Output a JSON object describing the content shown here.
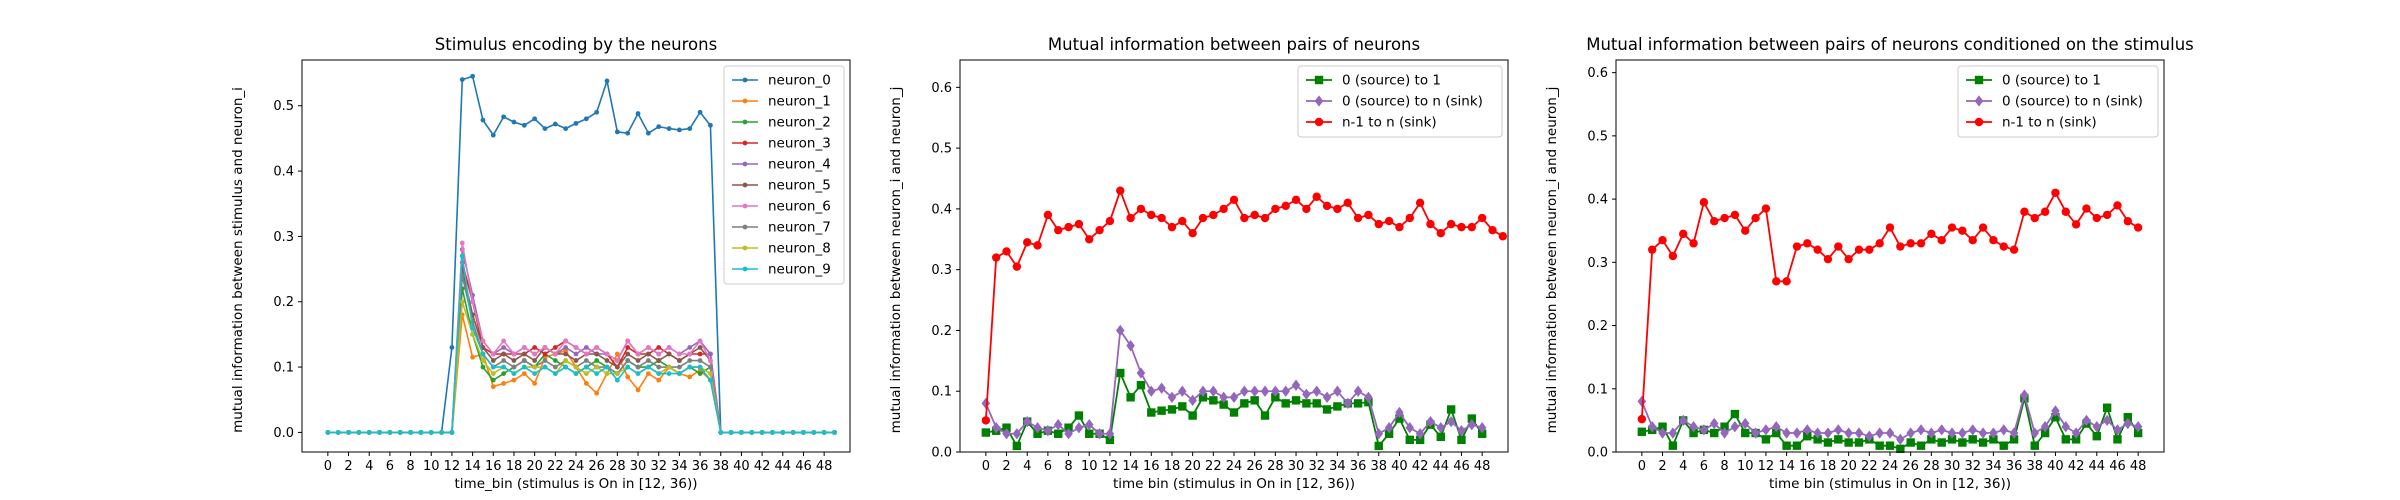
{
  "chart_data": [
    {
      "type": "line",
      "title": "Stimulus encoding by the neurons",
      "xlabel": "time_bin (stimulus is On in [12, 36))",
      "ylabel": "mutual information between stimulus and neuron_i",
      "xlim": [
        -2.5,
        50.5
      ],
      "ylim": [
        -0.03,
        0.57
      ],
      "xticks": [
        0,
        2,
        4,
        6,
        8,
        10,
        12,
        14,
        16,
        18,
        20,
        22,
        24,
        26,
        28,
        30,
        32,
        34,
        36,
        38,
        40,
        42,
        44,
        46,
        48
      ],
      "yticks": [
        0.0,
        0.1,
        0.2,
        0.3,
        0.4,
        0.5
      ],
      "ytick_labels": [
        "0.0",
        "0.1",
        "0.2",
        "0.3",
        "0.4",
        "0.5"
      ],
      "legend": "top-right",
      "grid": false,
      "series": [
        {
          "name": "neuron_0",
          "color": "#1f77b4",
          "marker": "circle",
          "values": [
            0,
            0,
            0,
            0,
            0,
            0,
            0,
            0,
            0,
            0,
            0,
            0,
            0.13,
            0.54,
            0.545,
            0.478,
            0.455,
            0.483,
            0.475,
            0.47,
            0.48,
            0.465,
            0.472,
            0.465,
            0.473,
            0.48,
            0.49,
            0.538,
            0.46,
            0.458,
            0.488,
            0.458,
            0.468,
            0.465,
            0.463,
            0.465,
            0.49,
            0.47,
            0,
            0,
            0,
            0,
            0,
            0,
            0,
            0,
            0,
            0,
            0,
            0
          ]
        },
        {
          "name": "neuron_1",
          "color": "#ff7f0e",
          "marker": "circle",
          "values": [
            0,
            0,
            0,
            0,
            0,
            0,
            0,
            0,
            0,
            0,
            0,
            0,
            0,
            0.18,
            0.115,
            0.12,
            0.07,
            0.075,
            0.08,
            0.09,
            0.075,
            0.115,
            0.12,
            0.125,
            0.1,
            0.075,
            0.06,
            0.09,
            0.12,
            0.085,
            0.065,
            0.09,
            0.08,
            0.1,
            0.09,
            0.085,
            0.095,
            0.08,
            0,
            0,
            0,
            0,
            0,
            0,
            0,
            0,
            0,
            0,
            0,
            0
          ]
        },
        {
          "name": "neuron_2",
          "color": "#2ca02c",
          "marker": "circle",
          "values": [
            0,
            0,
            0,
            0,
            0,
            0,
            0,
            0,
            0,
            0,
            0,
            0,
            0,
            0.22,
            0.15,
            0.1,
            0.08,
            0.09,
            0.1,
            0.11,
            0.1,
            0.12,
            0.11,
            0.1,
            0.09,
            0.1,
            0.11,
            0.1,
            0.09,
            0.11,
            0.1,
            0.1,
            0.11,
            0.1,
            0.09,
            0.1,
            0.09,
            0.1,
            0,
            0,
            0,
            0,
            0,
            0,
            0,
            0,
            0,
            0,
            0,
            0
          ]
        },
        {
          "name": "neuron_3",
          "color": "#d62728",
          "marker": "circle",
          "values": [
            0,
            0,
            0,
            0,
            0,
            0,
            0,
            0,
            0,
            0,
            0,
            0,
            0,
            0.26,
            0.2,
            0.13,
            0.12,
            0.12,
            0.12,
            0.12,
            0.13,
            0.12,
            0.13,
            0.14,
            0.13,
            0.12,
            0.13,
            0.12,
            0.1,
            0.13,
            0.12,
            0.12,
            0.13,
            0.12,
            0.11,
            0.12,
            0.12,
            0.12,
            0,
            0,
            0,
            0,
            0,
            0,
            0,
            0,
            0,
            0,
            0,
            0
          ]
        },
        {
          "name": "neuron_4",
          "color": "#9467bd",
          "marker": "circle",
          "values": [
            0,
            0,
            0,
            0,
            0,
            0,
            0,
            0,
            0,
            0,
            0,
            0,
            0,
            0.28,
            0.21,
            0.14,
            0.12,
            0.13,
            0.12,
            0.13,
            0.12,
            0.13,
            0.12,
            0.13,
            0.12,
            0.13,
            0.12,
            0.12,
            0.11,
            0.14,
            0.12,
            0.13,
            0.12,
            0.13,
            0.12,
            0.13,
            0.14,
            0.12,
            0,
            0,
            0,
            0,
            0,
            0,
            0,
            0,
            0,
            0,
            0,
            0
          ]
        },
        {
          "name": "neuron_5",
          "color": "#8c564b",
          "marker": "circle",
          "values": [
            0,
            0,
            0,
            0,
            0,
            0,
            0,
            0,
            0,
            0,
            0,
            0,
            0,
            0.25,
            0.18,
            0.13,
            0.11,
            0.12,
            0.11,
            0.12,
            0.11,
            0.13,
            0.12,
            0.12,
            0.11,
            0.12,
            0.12,
            0.11,
            0.1,
            0.12,
            0.11,
            0.12,
            0.11,
            0.12,
            0.11,
            0.12,
            0.13,
            0.11,
            0,
            0,
            0,
            0,
            0,
            0,
            0,
            0,
            0,
            0,
            0,
            0
          ]
        },
        {
          "name": "neuron_6",
          "color": "#e377c2",
          "marker": "circle",
          "values": [
            0,
            0,
            0,
            0,
            0,
            0,
            0,
            0,
            0,
            0,
            0,
            0,
            0,
            0.29,
            0.2,
            0.14,
            0.12,
            0.14,
            0.12,
            0.13,
            0.12,
            0.13,
            0.12,
            0.14,
            0.13,
            0.12,
            0.13,
            0.12,
            0.11,
            0.14,
            0.12,
            0.13,
            0.12,
            0.13,
            0.12,
            0.12,
            0.14,
            0.11,
            0,
            0,
            0,
            0,
            0,
            0,
            0,
            0,
            0,
            0,
            0,
            0
          ]
        },
        {
          "name": "neuron_7",
          "color": "#7f7f7f",
          "marker": "circle",
          "values": [
            0,
            0,
            0,
            0,
            0,
            0,
            0,
            0,
            0,
            0,
            0,
            0,
            0,
            0.24,
            0.17,
            0.12,
            0.1,
            0.11,
            0.1,
            0.11,
            0.1,
            0.11,
            0.1,
            0.11,
            0.1,
            0.11,
            0.1,
            0.1,
            0.09,
            0.11,
            0.1,
            0.11,
            0.1,
            0.1,
            0.1,
            0.11,
            0.11,
            0.1,
            0,
            0,
            0,
            0,
            0,
            0,
            0,
            0,
            0,
            0,
            0,
            0
          ]
        },
        {
          "name": "neuron_8",
          "color": "#bcbd22",
          "marker": "circle",
          "values": [
            0,
            0,
            0,
            0,
            0,
            0,
            0,
            0,
            0,
            0,
            0,
            0,
            0,
            0.2,
            0.15,
            0.11,
            0.09,
            0.1,
            0.09,
            0.1,
            0.1,
            0.1,
            0.09,
            0.11,
            0.1,
            0.09,
            0.1,
            0.09,
            0.09,
            0.1,
            0.09,
            0.1,
            0.09,
            0.1,
            0.09,
            0.1,
            0.1,
            0.09,
            0,
            0,
            0,
            0,
            0,
            0,
            0,
            0,
            0,
            0,
            0,
            0
          ]
        },
        {
          "name": "neuron_9",
          "color": "#17becf",
          "marker": "circle",
          "values": [
            0,
            0,
            0,
            0,
            0,
            0,
            0,
            0,
            0,
            0,
            0,
            0,
            0,
            0.27,
            0.16,
            0.12,
            0.1,
            0.1,
            0.09,
            0.1,
            0.09,
            0.1,
            0.09,
            0.1,
            0.09,
            0.1,
            0.09,
            0.1,
            0.08,
            0.1,
            0.09,
            0.1,
            0.09,
            0.09,
            0.09,
            0.1,
            0.1,
            0.08,
            0,
            0,
            0,
            0,
            0,
            0,
            0,
            0,
            0,
            0,
            0,
            0
          ]
        }
      ]
    },
    {
      "type": "line",
      "title": "Mutual information between pairs of neurons",
      "xlabel": "time bin (stimulus in On in [12, 36))",
      "ylabel": "mutual information between neuron_i and neuron_j",
      "xlim": [
        -2.5,
        50.5
      ],
      "ylim": [
        0,
        0.645
      ],
      "xticks": [
        0,
        2,
        4,
        6,
        8,
        10,
        12,
        14,
        16,
        18,
        20,
        22,
        24,
        26,
        28,
        30,
        32,
        34,
        36,
        38,
        40,
        42,
        44,
        46,
        48
      ],
      "yticks": [
        0.0,
        0.1,
        0.2,
        0.3,
        0.4,
        0.5,
        0.6
      ],
      "ytick_labels": [
        "0.0",
        "0.1",
        "0.2",
        "0.3",
        "0.4",
        "0.5",
        "0.6"
      ],
      "legend": "top-right",
      "grid": false,
      "series": [
        {
          "name": "0 (source) to 1",
          "color": "#008000",
          "marker": "square",
          "values": [
            0.032,
            0.035,
            0.04,
            0.01,
            0.05,
            0.03,
            0.035,
            0.03,
            0.04,
            0.06,
            0.03,
            0.03,
            0.02,
            0.13,
            0.09,
            0.11,
            0.065,
            0.068,
            0.07,
            0.075,
            0.06,
            0.09,
            0.085,
            0.078,
            0.065,
            0.08,
            0.085,
            0.06,
            0.09,
            0.08,
            0.085,
            0.08,
            0.08,
            0.07,
            0.075,
            0.08,
            0.08,
            0.082,
            0.01,
            0.03,
            0.055,
            0.02,
            0.02,
            0.045,
            0.025,
            0.07,
            0.02,
            0.055,
            0.03
          ]
        },
        {
          "name": "0 (source) to n (sink)",
          "color": "#9467bd",
          "marker": "diamond",
          "values": [
            0.08,
            0.04,
            0.03,
            0.03,
            0.05,
            0.04,
            0.035,
            0.045,
            0.03,
            0.04,
            0.045,
            0.03,
            0.03,
            0.2,
            0.175,
            0.13,
            0.1,
            0.105,
            0.09,
            0.1,
            0.085,
            0.1,
            0.1,
            0.09,
            0.09,
            0.1,
            0.1,
            0.1,
            0.1,
            0.1,
            0.11,
            0.095,
            0.1,
            0.09,
            0.1,
            0.08,
            0.1,
            0.09,
            0.03,
            0.04,
            0.065,
            0.04,
            0.03,
            0.05,
            0.04,
            0.05,
            0.035,
            0.045,
            0.04
          ]
        },
        {
          "name": "n-1 to n (sink)",
          "color": "#ff0000",
          "marker": "circle",
          "values": [
            0.052,
            0.32,
            0.33,
            0.305,
            0.345,
            0.34,
            0.39,
            0.365,
            0.37,
            0.375,
            0.35,
            0.365,
            0.38,
            0.43,
            0.385,
            0.4,
            0.39,
            0.385,
            0.37,
            0.38,
            0.36,
            0.385,
            0.39,
            0.4,
            0.415,
            0.385,
            0.39,
            0.385,
            0.4,
            0.405,
            0.415,
            0.4,
            0.42,
            0.405,
            0.4,
            0.41,
            0.385,
            0.39,
            0.375,
            0.38,
            0.37,
            0.385,
            0.41,
            0.375,
            0.36,
            0.375,
            0.37,
            0.37,
            0.385,
            0.365,
            0.355
          ]
        }
      ]
    },
    {
      "type": "line",
      "title": "Mutual information between pairs of neurons conditioned on the stimulus",
      "xlabel": "time bin (stimulus in On in [12, 36))",
      "ylabel": "mutual information between neuron_i and neuron_j",
      "xlim": [
        -2.5,
        50.5
      ],
      "ylim": [
        0,
        0.62
      ],
      "xticks": [
        0,
        2,
        4,
        6,
        8,
        10,
        12,
        14,
        16,
        18,
        20,
        22,
        24,
        26,
        28,
        30,
        32,
        34,
        36,
        38,
        40,
        42,
        44,
        46,
        48
      ],
      "yticks": [
        0.0,
        0.1,
        0.2,
        0.3,
        0.4,
        0.5,
        0.6
      ],
      "ytick_labels": [
        "0.0",
        "0.1",
        "0.2",
        "0.3",
        "0.4",
        "0.5",
        "0.6"
      ],
      "legend": "top-right",
      "grid": false,
      "series": [
        {
          "name": "0 (source) to 1",
          "color": "#008000",
          "marker": "square",
          "values": [
            0.032,
            0.035,
            0.04,
            0.01,
            0.05,
            0.03,
            0.035,
            0.03,
            0.04,
            0.06,
            0.03,
            0.03,
            0.02,
            0.03,
            0.01,
            0.01,
            0.025,
            0.02,
            0.015,
            0.02,
            0.015,
            0.015,
            0.02,
            0.01,
            0.01,
            0.005,
            0.015,
            0.01,
            0.02,
            0.015,
            0.02,
            0.015,
            0.02,
            0.015,
            0.02,
            0.01,
            0.02,
            0.085,
            0.01,
            0.03,
            0.055,
            0.02,
            0.02,
            0.045,
            0.025,
            0.07,
            0.02,
            0.055,
            0.03
          ]
        },
        {
          "name": "0 (source) to n (sink)",
          "color": "#9467bd",
          "marker": "diamond",
          "values": [
            0.08,
            0.04,
            0.03,
            0.03,
            0.05,
            0.04,
            0.035,
            0.045,
            0.03,
            0.04,
            0.045,
            0.03,
            0.035,
            0.04,
            0.03,
            0.03,
            0.035,
            0.03,
            0.03,
            0.035,
            0.03,
            0.03,
            0.025,
            0.03,
            0.03,
            0.02,
            0.03,
            0.035,
            0.03,
            0.035,
            0.03,
            0.03,
            0.035,
            0.03,
            0.03,
            0.035,
            0.03,
            0.09,
            0.03,
            0.04,
            0.065,
            0.04,
            0.03,
            0.05,
            0.04,
            0.05,
            0.035,
            0.045,
            0.04
          ]
        },
        {
          "name": "n-1 to n (sink)",
          "color": "#ff0000",
          "marker": "circle",
          "values": [
            0.052,
            0.32,
            0.335,
            0.31,
            0.345,
            0.33,
            0.395,
            0.365,
            0.37,
            0.375,
            0.35,
            0.37,
            0.385,
            0.27,
            0.27,
            0.325,
            0.33,
            0.32,
            0.305,
            0.325,
            0.305,
            0.32,
            0.32,
            0.33,
            0.355,
            0.325,
            0.33,
            0.33,
            0.345,
            0.335,
            0.355,
            0.35,
            0.335,
            0.355,
            0.335,
            0.325,
            0.32,
            0.38,
            0.37,
            0.38,
            0.41,
            0.38,
            0.36,
            0.385,
            0.37,
            0.375,
            0.39,
            0.365,
            0.355
          ]
        }
      ]
    }
  ]
}
